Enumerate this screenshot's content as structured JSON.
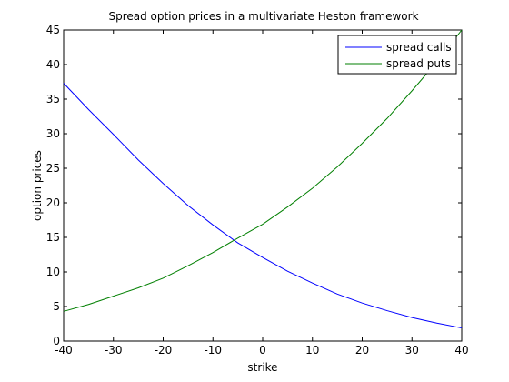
{
  "chart_data": {
    "type": "line",
    "title": "Spread option prices in a multivariate Heston framework",
    "xlabel": "strike",
    "ylabel": "option prices",
    "xlim": [
      -40,
      40
    ],
    "ylim": [
      0,
      45
    ],
    "xticks": [
      -40,
      -30,
      -20,
      -10,
      0,
      10,
      20,
      30,
      40
    ],
    "yticks": [
      0,
      5,
      10,
      15,
      20,
      25,
      30,
      35,
      40,
      45
    ],
    "grid": false,
    "legend_position": "top-right",
    "x": [
      -40,
      -35,
      -30,
      -25,
      -20,
      -15,
      -10,
      -5,
      0,
      5,
      10,
      15,
      20,
      25,
      30,
      35,
      40
    ],
    "series": [
      {
        "name": "spread calls",
        "color": "#0000ff",
        "values": [
          37.3,
          33.5,
          29.9,
          26.2,
          22.8,
          19.6,
          16.8,
          14.2,
          12.1,
          10.1,
          8.4,
          6.8,
          5.5,
          4.4,
          3.4,
          2.6,
          1.9
        ]
      },
      {
        "name": "spread puts",
        "color": "#007f00",
        "values": [
          4.3,
          5.3,
          6.5,
          7.7,
          9.1,
          10.9,
          12.8,
          14.9,
          16.9,
          19.4,
          22.1,
          25.2,
          28.6,
          32.2,
          36.2,
          40.4,
          45.0
        ]
      }
    ]
  }
}
